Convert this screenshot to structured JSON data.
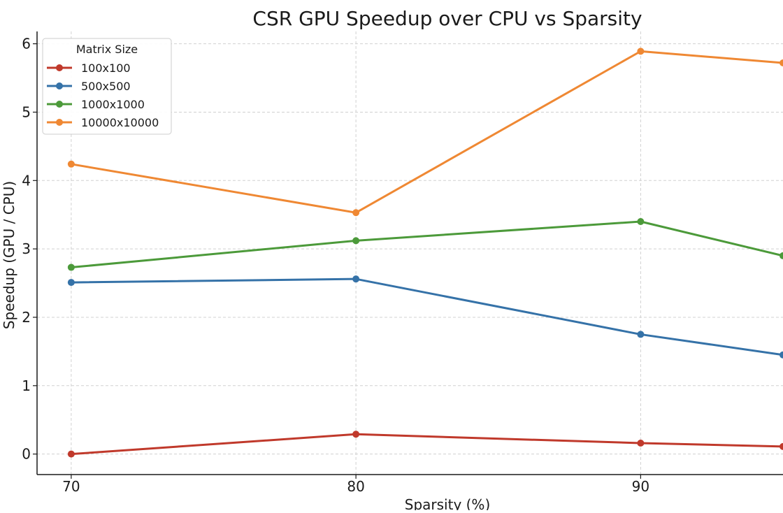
{
  "chart_data": {
    "type": "line",
    "title": "CSR GPU Speedup over CPU vs Sparsity",
    "xlabel": "Sparsity (%)",
    "ylabel": "Speedup (GPU / CPU)",
    "x": [
      70,
      80,
      90,
      95
    ],
    "xticks": [
      70,
      80,
      90
    ],
    "yticks": [
      0,
      1,
      2,
      3,
      4,
      5,
      6
    ],
    "xlim": [
      68.8,
      95
    ],
    "ylim": [
      -0.3,
      6.18
    ],
    "grid": true,
    "legend": {
      "title": "Matrix Size",
      "position": "top-left"
    },
    "series": [
      {
        "name": "100x100",
        "color": "#c0392b",
        "values": [
          0.0,
          0.29,
          0.16,
          0.11
        ]
      },
      {
        "name": "500x500",
        "color": "#3572a8",
        "values": [
          2.51,
          2.56,
          1.75,
          1.45
        ]
      },
      {
        "name": "1000x1000",
        "color": "#4c9a3a",
        "values": [
          2.73,
          3.12,
          3.4,
          2.9
        ]
      },
      {
        "name": "10000x10000",
        "color": "#ef8833",
        "values": [
          4.24,
          3.53,
          5.89,
          5.72
        ]
      }
    ]
  }
}
